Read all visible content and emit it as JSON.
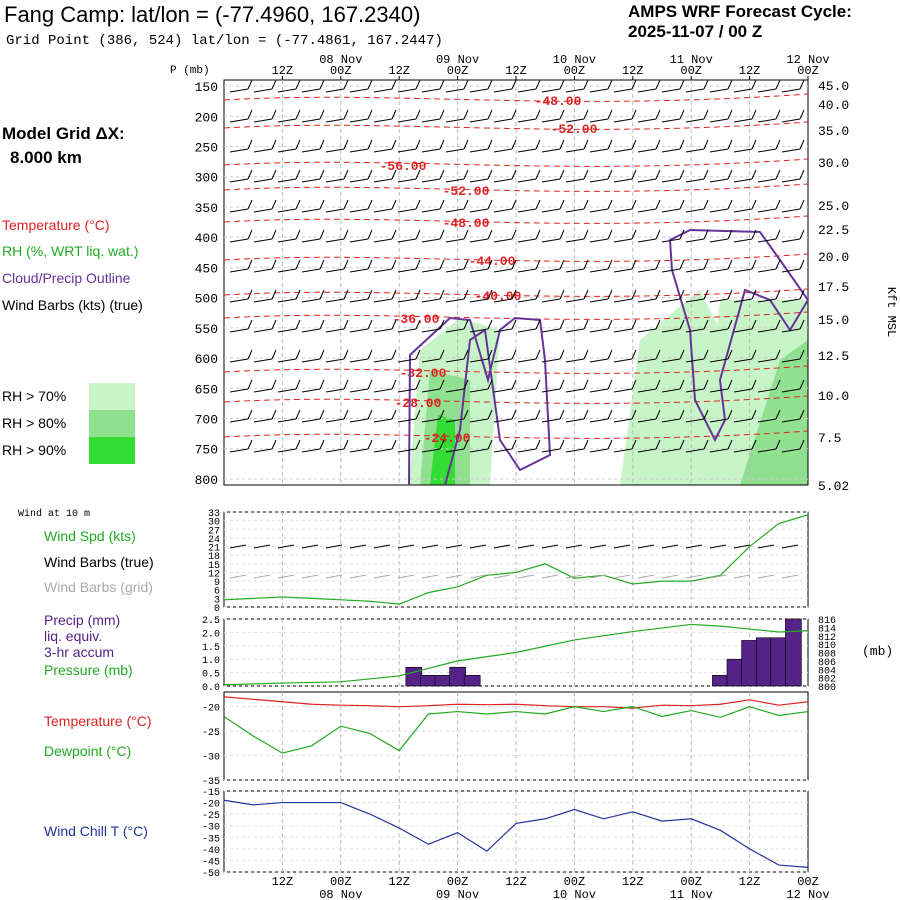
{
  "header": {
    "title": "Fang Camp:  lat/lon = (-77.4960, 167.2340)",
    "subtitle": "Grid Point (386, 524) lat/lon = (-77.4861, 167.2447)",
    "cycle_line1": "AMPS WRF Forecast Cycle:",
    "cycle_line2": "2025-11-07 / 00  Z",
    "grid_label": "Model Grid ΔX:",
    "grid_value": "8.000 km"
  },
  "legend": {
    "temperature": "Temperature (°C)",
    "rh": "RH (%, WRT liq. wat.)",
    "cloud": "Cloud/Precip Outline",
    "wind": "Wind Barbs (kts) (true)",
    "rh70": "RH > 70%",
    "rh80": "RH > 80%",
    "rh90": "RH > 90%"
  },
  "colors": {
    "temperature": "#dd2222",
    "rh": "#22aa22",
    "cloud": "#663399",
    "rh70": "#c8f5c8",
    "rh80": "#8fe08f",
    "rh90": "#33dd33",
    "wind_grid": "#aaaaaa",
    "windchill": "#223399",
    "precip": "#552288"
  },
  "time_axis": {
    "top_ticks": [
      "12Z",
      "00Z",
      "12Z",
      "00Z",
      "12Z",
      "00Z",
      "12Z",
      "00Z",
      "12Z",
      "00Z"
    ],
    "dates": [
      "08 Nov",
      "09 Nov",
      "10 Nov",
      "11 Nov",
      "12 Nov"
    ]
  },
  "chart_data": [
    {
      "type": "line",
      "name": "cross-section",
      "y_axis_label": "P (mb)",
      "y_axis_right_label": "Kft MSL",
      "pressure_levels": [
        "150",
        "200",
        "250",
        "300",
        "350",
        "400",
        "450",
        "500",
        "550",
        "600",
        "650",
        "700",
        "750",
        "800"
      ],
      "kft_levels": [
        "45.0",
        "40.0",
        "35.0",
        "30.0",
        "25.0",
        "22.5",
        "20.0",
        "17.5",
        "15.0",
        "12.5",
        "10.0",
        "7.5",
        "5.02"
      ],
      "temperature_labels": [
        "-48.00",
        "-52.00",
        "-56.00",
        "-52.00",
        "-48.00",
        "-44.00",
        "-40.00",
        "-36.00",
        "-32.00",
        "-28.00",
        "-24.00"
      ]
    },
    {
      "type": "line",
      "name": "wind-10m",
      "panel_title": "Wind at 10 m",
      "series_labels": [
        "Wind Spd (kts)",
        "Wind Barbs (true)",
        "Wind Barbs (grid)"
      ],
      "y_ticks": [
        "0",
        "3",
        "6",
        "9",
        "12",
        "15",
        "18",
        "21",
        "24",
        "27",
        "30",
        "33"
      ],
      "ylim": [
        0,
        33
      ],
      "x": [
        0,
        6,
        12,
        18,
        24,
        30,
        36,
        42,
        48,
        54,
        60,
        66,
        72,
        78,
        84,
        90,
        96,
        102,
        108,
        114,
        120
      ],
      "values": [
        2.5,
        3,
        3.5,
        3,
        2.5,
        2,
        1,
        5,
        7,
        11,
        12,
        15,
        10,
        11,
        8,
        9,
        9,
        11,
        21,
        29,
        32
      ]
    },
    {
      "type": "bar",
      "name": "precip-pressure",
      "series_labels": [
        "Precip (mm)",
        "liq. equiv.",
        "3-hr accum",
        "Pressure (mb)"
      ],
      "y_ticks": [
        "0.0",
        "0.5",
        "1.0",
        "1.5",
        "2.0",
        "2.5"
      ],
      "ylim": [
        0,
        2.5
      ],
      "right_ticks": [
        "800",
        "802",
        "804",
        "806",
        "808",
        "810",
        "812",
        "814",
        "816"
      ],
      "right_label": "(mb)",
      "precip": [
        {
          "x": 39,
          "value": 0.7
        },
        {
          "x": 42,
          "value": 0.4
        },
        {
          "x": 45,
          "value": 0.4
        },
        {
          "x": 48,
          "value": 0.7
        },
        {
          "x": 51,
          "value": 0.4
        },
        {
          "x": 102,
          "value": 0.4
        },
        {
          "x": 105,
          "value": 1.0
        },
        {
          "x": 108,
          "value": 1.7
        },
        {
          "x": 111,
          "value": 1.8
        },
        {
          "x": 114,
          "value": 1.8
        },
        {
          "x": 117,
          "value": 2.5
        }
      ],
      "pressure": {
        "x": [
          0,
          12,
          24,
          36,
          48,
          60,
          72,
          84,
          96,
          102,
          108,
          114,
          120
        ],
        "values": [
          800.3,
          800.7,
          801,
          802.4,
          806,
          808,
          811,
          813,
          814.7,
          814.3,
          813.6,
          812.9,
          813.2
        ]
      }
    },
    {
      "type": "line",
      "name": "temp-dewpoint",
      "series_labels": [
        "Temperature (°C)",
        "Dewpoint (°C)"
      ],
      "y_ticks": [
        "-35",
        "-30",
        "-25",
        "-20"
      ],
      "ylim": [
        -35,
        -17
      ],
      "x": [
        0,
        6,
        12,
        18,
        24,
        30,
        36,
        42,
        48,
        54,
        60,
        66,
        72,
        78,
        84,
        90,
        96,
        102,
        108,
        114,
        120
      ],
      "temperature": [
        -18,
        -18.5,
        -19,
        -19.5,
        -19.7,
        -19.8,
        -20,
        -19.8,
        -19.5,
        -19.6,
        -19.5,
        -19.8,
        -20,
        -20,
        -20.3,
        -19.7,
        -19.8,
        -19.5,
        -18.6,
        -19.7,
        -19
      ],
      "dewpoint": [
        -22,
        -26,
        -29.5,
        -28,
        -24,
        -25.5,
        -29,
        -21.5,
        -21,
        -21.5,
        -21,
        -21.5,
        -20,
        -21,
        -20,
        -22,
        -20.8,
        -22.2,
        -20,
        -21.8,
        -21
      ]
    },
    {
      "type": "line",
      "name": "wind-chill",
      "series_labels": [
        "Wind Chill T (°C)"
      ],
      "y_ticks": [
        "-50",
        "-45",
        "-40",
        "-35",
        "-30",
        "-25",
        "-20",
        "-15"
      ],
      "ylim": [
        -50,
        -15
      ],
      "x": [
        0,
        6,
        12,
        18,
        24,
        30,
        36,
        42,
        48,
        54,
        60,
        66,
        72,
        78,
        84,
        90,
        96,
        102,
        108,
        114,
        120
      ],
      "values": [
        -19,
        -21,
        -20,
        -20,
        -20,
        -25,
        -31,
        -38,
        -33,
        -41,
        -29,
        -27,
        -23,
        -27,
        -24,
        -28,
        -27,
        -32,
        -40,
        -47,
        -48
      ]
    }
  ]
}
